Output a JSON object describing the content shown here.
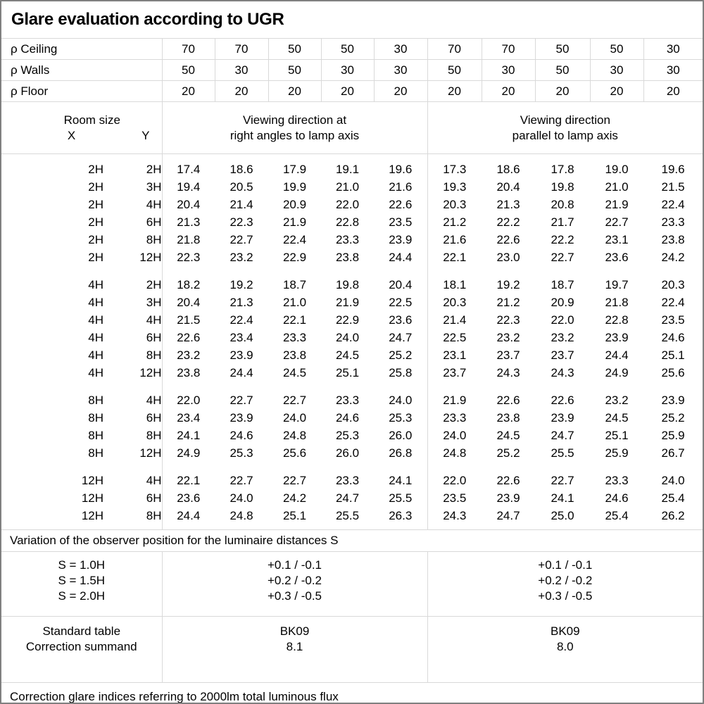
{
  "title": "Glare evaluation according to UGR",
  "reflectance": {
    "ceiling": {
      "label": "ρ Ceiling",
      "values": [
        "70",
        "70",
        "50",
        "50",
        "30",
        "70",
        "70",
        "50",
        "50",
        "30"
      ]
    },
    "walls": {
      "label": "ρ Walls",
      "values": [
        "50",
        "30",
        "50",
        "30",
        "30",
        "50",
        "30",
        "50",
        "30",
        "30"
      ]
    },
    "floor": {
      "label": "ρ Floor",
      "values": [
        "20",
        "20",
        "20",
        "20",
        "20",
        "20",
        "20",
        "20",
        "20",
        "20"
      ]
    }
  },
  "header": {
    "room_size": "Room size",
    "x_label": "X",
    "y_label": "Y",
    "group1_line1": "Viewing direction at",
    "group1_line2": "right angles to lamp axis",
    "group2_line1": "Viewing direction",
    "group2_line2": "parallel to lamp axis"
  },
  "ugr_sections": [
    {
      "rows": [
        {
          "x": "2H",
          "y": "2H",
          "right_angles": [
            "17.4",
            "18.6",
            "17.9",
            "19.1",
            "19.6"
          ],
          "parallel": [
            "17.3",
            "18.6",
            "17.8",
            "19.0",
            "19.6"
          ]
        },
        {
          "x": "2H",
          "y": "3H",
          "right_angles": [
            "19.4",
            "20.5",
            "19.9",
            "21.0",
            "21.6"
          ],
          "parallel": [
            "19.3",
            "20.4",
            "19.8",
            "21.0",
            "21.5"
          ]
        },
        {
          "x": "2H",
          "y": "4H",
          "right_angles": [
            "20.4",
            "21.4",
            "20.9",
            "22.0",
            "22.6"
          ],
          "parallel": [
            "20.3",
            "21.3",
            "20.8",
            "21.9",
            "22.4"
          ]
        },
        {
          "x": "2H",
          "y": "6H",
          "right_angles": [
            "21.3",
            "22.3",
            "21.9",
            "22.8",
            "23.5"
          ],
          "parallel": [
            "21.2",
            "22.2",
            "21.7",
            "22.7",
            "23.3"
          ]
        },
        {
          "x": "2H",
          "y": "8H",
          "right_angles": [
            "21.8",
            "22.7",
            "22.4",
            "23.3",
            "23.9"
          ],
          "parallel": [
            "21.6",
            "22.6",
            "22.2",
            "23.1",
            "23.8"
          ]
        },
        {
          "x": "2H",
          "y": "12H",
          "right_angles": [
            "22.3",
            "23.2",
            "22.9",
            "23.8",
            "24.4"
          ],
          "parallel": [
            "22.1",
            "23.0",
            "22.7",
            "23.6",
            "24.2"
          ]
        }
      ]
    },
    {
      "rows": [
        {
          "x": "4H",
          "y": "2H",
          "right_angles": [
            "18.2",
            "19.2",
            "18.7",
            "19.8",
            "20.4"
          ],
          "parallel": [
            "18.1",
            "19.2",
            "18.7",
            "19.7",
            "20.3"
          ]
        },
        {
          "x": "4H",
          "y": "3H",
          "right_angles": [
            "20.4",
            "21.3",
            "21.0",
            "21.9",
            "22.5"
          ],
          "parallel": [
            "20.3",
            "21.2",
            "20.9",
            "21.8",
            "22.4"
          ]
        },
        {
          "x": "4H",
          "y": "4H",
          "right_angles": [
            "21.5",
            "22.4",
            "22.1",
            "22.9",
            "23.6"
          ],
          "parallel": [
            "21.4",
            "22.3",
            "22.0",
            "22.8",
            "23.5"
          ]
        },
        {
          "x": "4H",
          "y": "6H",
          "right_angles": [
            "22.6",
            "23.4",
            "23.3",
            "24.0",
            "24.7"
          ],
          "parallel": [
            "22.5",
            "23.2",
            "23.2",
            "23.9",
            "24.6"
          ]
        },
        {
          "x": "4H",
          "y": "8H",
          "right_angles": [
            "23.2",
            "23.9",
            "23.8",
            "24.5",
            "25.2"
          ],
          "parallel": [
            "23.1",
            "23.7",
            "23.7",
            "24.4",
            "25.1"
          ]
        },
        {
          "x": "4H",
          "y": "12H",
          "right_angles": [
            "23.8",
            "24.4",
            "24.5",
            "25.1",
            "25.8"
          ],
          "parallel": [
            "23.7",
            "24.3",
            "24.3",
            "24.9",
            "25.6"
          ]
        }
      ]
    },
    {
      "rows": [
        {
          "x": "8H",
          "y": "4H",
          "right_angles": [
            "22.0",
            "22.7",
            "22.7",
            "23.3",
            "24.0"
          ],
          "parallel": [
            "21.9",
            "22.6",
            "22.6",
            "23.2",
            "23.9"
          ]
        },
        {
          "x": "8H",
          "y": "6H",
          "right_angles": [
            "23.4",
            "23.9",
            "24.0",
            "24.6",
            "25.3"
          ],
          "parallel": [
            "23.3",
            "23.8",
            "23.9",
            "24.5",
            "25.2"
          ]
        },
        {
          "x": "8H",
          "y": "8H",
          "right_angles": [
            "24.1",
            "24.6",
            "24.8",
            "25.3",
            "26.0"
          ],
          "parallel": [
            "24.0",
            "24.5",
            "24.7",
            "25.1",
            "25.9"
          ]
        },
        {
          "x": "8H",
          "y": "12H",
          "right_angles": [
            "24.9",
            "25.3",
            "25.6",
            "26.0",
            "26.8"
          ],
          "parallel": [
            "24.8",
            "25.2",
            "25.5",
            "25.9",
            "26.7"
          ]
        }
      ]
    },
    {
      "rows": [
        {
          "x": "12H",
          "y": "4H",
          "right_angles": [
            "22.1",
            "22.7",
            "22.7",
            "23.3",
            "24.1"
          ],
          "parallel": [
            "22.0",
            "22.6",
            "22.7",
            "23.3",
            "24.0"
          ]
        },
        {
          "x": "12H",
          "y": "6H",
          "right_angles": [
            "23.6",
            "24.0",
            "24.2",
            "24.7",
            "25.5"
          ],
          "parallel": [
            "23.5",
            "23.9",
            "24.1",
            "24.6",
            "25.4"
          ]
        },
        {
          "x": "12H",
          "y": "8H",
          "right_angles": [
            "24.4",
            "24.8",
            "25.1",
            "25.5",
            "26.3"
          ],
          "parallel": [
            "24.3",
            "24.7",
            "25.0",
            "25.4",
            "26.2"
          ]
        }
      ]
    }
  ],
  "variation_note": "Variation of the observer position for the luminaire distances S",
  "spacing_correction": {
    "labels": [
      "S = 1.0H",
      "S = 1.5H",
      "S = 2.0H"
    ],
    "right_angles": [
      "+0.1 / -0.1",
      "+0.2 / -0.2",
      "+0.3 / -0.5"
    ],
    "parallel": [
      "+0.1 / -0.1",
      "+0.2 / -0.2",
      "+0.3 / -0.5"
    ]
  },
  "standard": {
    "row1_label": "Standard table",
    "row1_right_angles": "BK09",
    "row1_parallel": "BK09",
    "row2_label": "Correction summand",
    "row2_right_angles": "8.1",
    "row2_parallel": "8.0"
  },
  "footer_note": "Correction glare indices referring to 2000lm total luminous flux",
  "colors": {
    "grid_line": "#d9d9d9",
    "outer_border": "#808080",
    "text": "#000000",
    "background": "#ffffff"
  }
}
